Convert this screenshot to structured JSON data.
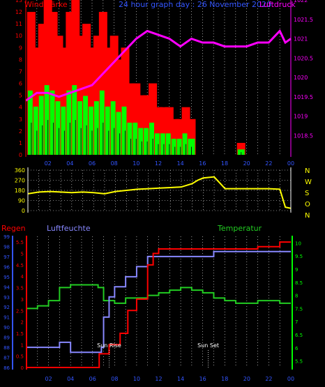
{
  "header": {
    "left_title": "Windstärke",
    "center_title": "24 hour graph day : 26 November 2020",
    "right_title": "Luftdruck"
  },
  "compass": [
    "N",
    "W",
    "S",
    "O",
    "N"
  ],
  "bottom_labels": {
    "regen": "Regen",
    "luftfeuchte": "Luftfeuchte",
    "temperatur": "Temperatur",
    "sunrise": "Sun Rise",
    "sunset": "Sun Set"
  },
  "colors": {
    "wind_gust": "#ff0000",
    "wind_avg": "#00ff00",
    "wind_min": "#000000",
    "pressure": "#ff00ff",
    "direction": "#ffff00",
    "rain": "#ff0000",
    "humidity": "#8888ff",
    "temperature": "#22cc22",
    "gridline": "#ffffff",
    "axis_blue": "#3355ff",
    "axis_red": "#ff0000",
    "axis_green": "#00ff00"
  },
  "chart_data": [
    {
      "type": "bar",
      "title": "Windstärke",
      "x_ticks": [
        "02",
        "04",
        "06",
        "08",
        "10",
        "12",
        "14",
        "16",
        "18",
        "20",
        "22",
        "00"
      ],
      "x_range_hours": [
        0,
        24
      ],
      "ylim": [
        0,
        13
      ],
      "y_ticks": [
        0,
        1,
        2,
        3,
        4,
        5,
        6,
        7,
        8,
        9,
        10,
        11,
        12,
        13
      ],
      "series": [
        {
          "name": "Windstärke",
          "x_hours": [
            0.5,
            1,
            1.5,
            2,
            2.5,
            3,
            3.5,
            4,
            4.5,
            5,
            5.5,
            6,
            6.5,
            7,
            7.5,
            8,
            8.5,
            9,
            9.5,
            10,
            10.5,
            11,
            11.5,
            12,
            12.5,
            13,
            13.5,
            14,
            14.5,
            15,
            19.5
          ],
          "values": [
            12,
            9,
            11,
            13,
            12,
            10,
            9,
            12,
            13,
            10,
            11,
            9,
            10,
            12,
            9,
            10,
            8,
            9,
            6,
            6,
            5,
            5,
            6,
            4,
            4,
            4,
            3,
            3,
            4,
            3,
            1
          ]
        }
      ]
    },
    {
      "type": "line",
      "title": "Luftdruck",
      "x_range_hours": [
        0,
        24
      ],
      "ylim": [
        1018.0,
        1022.0
      ],
      "y_ticks": [
        1018.5,
        1019,
        1019.5,
        1020,
        1020.5,
        1021,
        1021.5,
        1022
      ],
      "series": [
        {
          "name": "Luftdruck",
          "x": [
            0,
            1,
            2,
            3,
            4,
            5,
            6,
            7,
            8,
            9,
            10,
            11,
            12,
            13,
            14,
            15,
            16,
            17,
            18,
            19,
            20,
            21,
            22,
            23,
            23.5,
            24
          ],
          "y": [
            1019.4,
            1019.6,
            1019.6,
            1019.5,
            1019.6,
            1019.7,
            1019.8,
            1020.1,
            1020.4,
            1020.7,
            1021.0,
            1021.2,
            1021.1,
            1021.0,
            1020.8,
            1021.0,
            1020.9,
            1020.9,
            1020.8,
            1020.8,
            1020.8,
            1020.9,
            1020.9,
            1021.2,
            1020.9,
            1021.0
          ]
        }
      ]
    },
    {
      "type": "line",
      "title": "",
      "x_range_hours": [
        0,
        24
      ],
      "ylim": [
        0,
        360
      ],
      "y_ticks": [
        0,
        90,
        180,
        270,
        360
      ],
      "series": [
        {
          "name": "Windrichtung",
          "x": [
            0,
            1,
            2,
            3,
            4,
            5,
            6,
            7,
            8,
            9,
            10,
            11,
            12,
            13,
            14,
            15,
            15.5,
            16,
            17,
            18,
            19,
            20,
            21,
            22,
            23,
            23.5,
            24
          ],
          "y": [
            150,
            165,
            170,
            165,
            160,
            165,
            160,
            150,
            170,
            180,
            190,
            195,
            200,
            205,
            210,
            240,
            270,
            290,
            300,
            195,
            195,
            195,
            195,
            195,
            190,
            30,
            20
          ]
        }
      ]
    },
    {
      "type": "line",
      "title": "",
      "x_range_hours": [
        0,
        24
      ],
      "y_axes": {
        "regen": {
          "ylim": [
            0,
            5.75
          ],
          "ticks": [
            0,
            0.5,
            1,
            1.5,
            2,
            2.5,
            3,
            3.5,
            4,
            4.5,
            5,
            5.5
          ]
        },
        "luftfeuchte": {
          "ylim": [
            86,
            99
          ],
          "ticks": [
            86,
            87,
            88,
            89,
            90,
            91,
            92,
            93,
            94,
            95,
            96,
            97,
            98,
            99
          ]
        },
        "temperatur": {
          "ylim": [
            5.25,
            10.25
          ],
          "ticks": [
            5.5,
            6,
            6.5,
            7,
            7.5,
            8,
            8.5,
            9,
            9.5,
            10
          ]
        }
      },
      "series": [
        {
          "name": "Regen",
          "x": [
            0,
            6.5,
            6.6,
            7.5,
            8.5,
            9.2,
            10,
            11,
            11.5,
            12,
            13,
            14,
            15,
            17,
            18,
            19,
            20,
            21,
            22,
            23,
            24
          ],
          "y": [
            0,
            0,
            0.6,
            1,
            1.5,
            2.5,
            3,
            4.5,
            5,
            5.2,
            5.2,
            5.2,
            5.2,
            5.2,
            5.2,
            5.2,
            5.2,
            5.3,
            5.3,
            5.5,
            5.5
          ]
        },
        {
          "name": "Luftfeuchte",
          "x": [
            0,
            1,
            2,
            3,
            4,
            5,
            6,
            6.8,
            7,
            7.5,
            8,
            9,
            10,
            11,
            12,
            13,
            14,
            15,
            16,
            17,
            18,
            19,
            20,
            21,
            22,
            23,
            24
          ],
          "y": [
            88,
            88,
            88,
            88.5,
            87.5,
            87.5,
            87.5,
            88,
            91,
            93,
            94,
            95,
            96,
            97,
            97,
            97,
            97,
            97,
            97,
            97.5,
            97.5,
            97.5,
            97.5,
            97.5,
            97.5,
            97.5,
            97.5
          ]
        },
        {
          "name": "Temperatur",
          "x": [
            0,
            1,
            2,
            3,
            4,
            5,
            6,
            6.5,
            7,
            8,
            9,
            10,
            11,
            12,
            13,
            14,
            15,
            16,
            17,
            18,
            19,
            20,
            21,
            22,
            23,
            24
          ],
          "y": [
            7.5,
            7.6,
            7.8,
            8.3,
            8.4,
            8.4,
            8.4,
            8.3,
            7.8,
            7.7,
            7.9,
            7.9,
            8.0,
            8.1,
            8.2,
            8.3,
            8.2,
            8.1,
            7.9,
            7.8,
            7.7,
            7.7,
            7.8,
            7.8,
            7.7,
            7.7
          ]
        }
      ],
      "markers": [
        {
          "label": "Sun Rise",
          "x_hours": 7.5
        },
        {
          "label": "Sun Set",
          "x_hours": 16.5
        }
      ]
    }
  ]
}
